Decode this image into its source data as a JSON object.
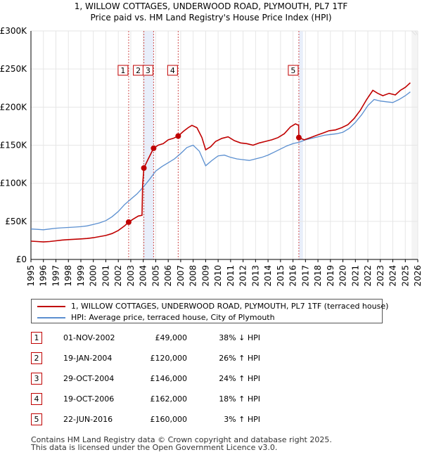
{
  "chart_data": {
    "type": "line",
    "title_line1": "1, WILLOW COTTAGES, UNDERWOOD ROAD, PLYMOUTH, PL7 1TF",
    "title_line2": "Price paid vs. HM Land Registry's House Price Index (HPI)",
    "x_range": [
      1995,
      2026
    ],
    "y_range": [
      0,
      300000
    ],
    "y_ticks": [
      {
        "value": 0,
        "label": "£0"
      },
      {
        "value": 50000,
        "label": "£50K"
      },
      {
        "value": 100000,
        "label": "£100K"
      },
      {
        "value": 150000,
        "label": "£150K"
      },
      {
        "value": 200000,
        "label": "£200K"
      },
      {
        "value": 250000,
        "label": "£250K"
      },
      {
        "value": 300000,
        "label": "£300K"
      }
    ],
    "x_ticks": [
      "1995",
      "1996",
      "1997",
      "1998",
      "1999",
      "2000",
      "2001",
      "2002",
      "2003",
      "2004",
      "2005",
      "2006",
      "2007",
      "2008",
      "2009",
      "2010",
      "2011",
      "2012",
      "2013",
      "2014",
      "2015",
      "2016",
      "2017",
      "2018",
      "2019",
      "2020",
      "2021",
      "2022",
      "2023",
      "2024",
      "2025",
      "2026"
    ],
    "series": [
      {
        "name": "1, WILLOW COTTAGES, UNDERWOOD ROAD, PLYMOUTH, PL7 1TF (terraced house)",
        "color": "#c00000",
        "points": [
          [
            1995.0,
            24000
          ],
          [
            1995.5,
            23500
          ],
          [
            1996.0,
            23000
          ],
          [
            1996.5,
            23500
          ],
          [
            1997.0,
            24500
          ],
          [
            1997.5,
            25500
          ],
          [
            1998.0,
            26000
          ],
          [
            1998.5,
            26500
          ],
          [
            1999.0,
            27000
          ],
          [
            1999.5,
            27500
          ],
          [
            2000.0,
            28500
          ],
          [
            2000.5,
            30000
          ],
          [
            2001.0,
            31500
          ],
          [
            2001.5,
            34000
          ],
          [
            2002.0,
            38000
          ],
          [
            2002.5,
            44000
          ],
          [
            2002.83,
            49000
          ],
          [
            2003.2,
            53000
          ],
          [
            2003.6,
            57000
          ],
          [
            2003.9,
            58000
          ],
          [
            2003.95,
            98000
          ],
          [
            2004.05,
            120000
          ],
          [
            2004.4,
            132000
          ],
          [
            2004.83,
            146000
          ],
          [
            2005.2,
            150000
          ],
          [
            2005.6,
            152000
          ],
          [
            2006.0,
            157000
          ],
          [
            2006.4,
            159000
          ],
          [
            2006.8,
            162000
          ],
          [
            2007.2,
            168000
          ],
          [
            2007.6,
            173000
          ],
          [
            2007.9,
            176000
          ],
          [
            2008.3,
            173000
          ],
          [
            2008.7,
            160000
          ],
          [
            2009.0,
            144000
          ],
          [
            2009.4,
            148000
          ],
          [
            2009.8,
            155000
          ],
          [
            2010.3,
            159000
          ],
          [
            2010.8,
            161000
          ],
          [
            2011.3,
            156000
          ],
          [
            2011.8,
            153000
          ],
          [
            2012.3,
            152000
          ],
          [
            2012.8,
            150000
          ],
          [
            2013.3,
            153000
          ],
          [
            2013.8,
            155000
          ],
          [
            2014.3,
            157000
          ],
          [
            2014.8,
            160000
          ],
          [
            2015.3,
            165000
          ],
          [
            2015.8,
            174000
          ],
          [
            2016.2,
            178000
          ],
          [
            2016.45,
            176000
          ],
          [
            2016.47,
            160000
          ],
          [
            2016.9,
            157000
          ],
          [
            2017.4,
            160000
          ],
          [
            2017.9,
            163000
          ],
          [
            2018.4,
            166000
          ],
          [
            2018.9,
            169000
          ],
          [
            2019.4,
            170000
          ],
          [
            2019.9,
            173000
          ],
          [
            2020.4,
            177000
          ],
          [
            2020.9,
            185000
          ],
          [
            2021.4,
            196000
          ],
          [
            2021.9,
            210000
          ],
          [
            2022.4,
            222000
          ],
          [
            2022.8,
            218000
          ],
          [
            2023.2,
            215000
          ],
          [
            2023.7,
            218000
          ],
          [
            2024.2,
            216000
          ],
          [
            2024.6,
            222000
          ],
          [
            2025.0,
            226000
          ],
          [
            2025.4,
            232000
          ]
        ]
      },
      {
        "name": "HPI: Average price, terraced house, City of Plymouth",
        "color": "#5b8fd0",
        "points": [
          [
            1995.0,
            40000
          ],
          [
            1995.5,
            39500
          ],
          [
            1996.0,
            39000
          ],
          [
            1996.5,
            40000
          ],
          [
            1997.0,
            41000
          ],
          [
            1997.5,
            41500
          ],
          [
            1998.0,
            42000
          ],
          [
            1998.5,
            42500
          ],
          [
            1999.0,
            43000
          ],
          [
            1999.5,
            44000
          ],
          [
            2000.0,
            46000
          ],
          [
            2000.5,
            48000
          ],
          [
            2001.0,
            51000
          ],
          [
            2001.5,
            56000
          ],
          [
            2002.0,
            63000
          ],
          [
            2002.5,
            72000
          ],
          [
            2003.0,
            79000
          ],
          [
            2003.5,
            86000
          ],
          [
            2004.0,
            95000
          ],
          [
            2004.5,
            105000
          ],
          [
            2005.0,
            116000
          ],
          [
            2005.5,
            122000
          ],
          [
            2006.0,
            127000
          ],
          [
            2006.5,
            132000
          ],
          [
            2007.0,
            139000
          ],
          [
            2007.5,
            147000
          ],
          [
            2008.0,
            150000
          ],
          [
            2008.5,
            142000
          ],
          [
            2009.0,
            123000
          ],
          [
            2009.5,
            130000
          ],
          [
            2010.0,
            136000
          ],
          [
            2010.5,
            137000
          ],
          [
            2011.0,
            134000
          ],
          [
            2011.5,
            132000
          ],
          [
            2012.0,
            131000
          ],
          [
            2012.5,
            130000
          ],
          [
            2013.0,
            132000
          ],
          [
            2013.5,
            134000
          ],
          [
            2014.0,
            137000
          ],
          [
            2014.5,
            141000
          ],
          [
            2015.0,
            145000
          ],
          [
            2015.5,
            149000
          ],
          [
            2016.0,
            152000
          ],
          [
            2016.5,
            154000
          ],
          [
            2017.0,
            157000
          ],
          [
            2017.5,
            159000
          ],
          [
            2018.0,
            161000
          ],
          [
            2018.5,
            163000
          ],
          [
            2019.0,
            164000
          ],
          [
            2019.5,
            165000
          ],
          [
            2020.0,
            167000
          ],
          [
            2020.5,
            172000
          ],
          [
            2021.0,
            180000
          ],
          [
            2021.5,
            190000
          ],
          [
            2022.0,
            202000
          ],
          [
            2022.5,
            210000
          ],
          [
            2023.0,
            208000
          ],
          [
            2023.5,
            207000
          ],
          [
            2024.0,
            206000
          ],
          [
            2024.5,
            210000
          ],
          [
            2025.0,
            215000
          ],
          [
            2025.4,
            220000
          ]
        ]
      }
    ],
    "sales": [
      {
        "num": "1",
        "x": 2002.83,
        "price": 49000
      },
      {
        "num": "2",
        "x": 2004.05,
        "price": 120000
      },
      {
        "num": "3",
        "x": 2004.83,
        "price": 146000
      },
      {
        "num": "4",
        "x": 2006.8,
        "price": 162000
      },
      {
        "num": "5",
        "x": 2016.47,
        "price": 160000
      }
    ],
    "shaded_ranges": [
      [
        2004.05,
        2004.83
      ],
      [
        2006.8,
        2006.8
      ],
      [
        2016.47,
        2016.8
      ]
    ],
    "future_from": 2025.5
  },
  "legend": {
    "property": "1, WILLOW COTTAGES, UNDERWOOD ROAD, PLYMOUTH, PL7 1TF (terraced house)",
    "hpi": "HPI: Average price, terraced house, City of Plymouth"
  },
  "table": [
    {
      "num": "1",
      "date": "01-NOV-2002",
      "price": "£49,000",
      "hpi": "38% ↓ HPI"
    },
    {
      "num": "2",
      "date": "19-JAN-2004",
      "price": "£120,000",
      "hpi": "26% ↑ HPI"
    },
    {
      "num": "3",
      "date": "29-OCT-2004",
      "price": "£146,000",
      "hpi": "24% ↑ HPI"
    },
    {
      "num": "4",
      "date": "19-OCT-2006",
      "price": "£162,000",
      "hpi": "18% ↑ HPI"
    },
    {
      "num": "5",
      "date": "22-JUN-2016",
      "price": "£160,000",
      "hpi": "3% ↑ HPI"
    }
  ],
  "footer": {
    "line1": "Contains HM Land Registry data © Crown copyright and database right 2025.",
    "line2": "This data is licensed under the Open Government Licence v3.0."
  },
  "colors": {
    "property": "#c00000",
    "hpi": "#5b8fd0",
    "shade": "#e8eefa",
    "plot_bg": "#ffffff"
  }
}
